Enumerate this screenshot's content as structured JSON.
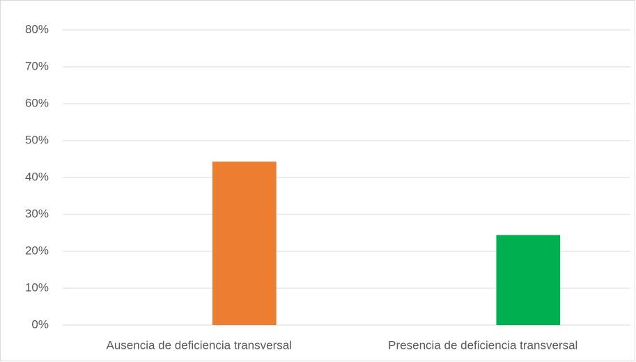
{
  "chart_data": {
    "type": "bar",
    "categories": [
      "Ausencia de deficiencia transversal",
      "Presencia de deficiencia transversal"
    ],
    "values": [
      44.3,
      24.4
    ],
    "colors": [
      "#ed7d31",
      "#00b050"
    ],
    "ylim": [
      0,
      80
    ],
    "yticks": [
      {
        "value": 0,
        "label": "0%"
      },
      {
        "value": 10,
        "label": "10%"
      },
      {
        "value": 20,
        "label": "20%"
      },
      {
        "value": 30,
        "label": "30%"
      },
      {
        "value": 40,
        "label": "40%"
      },
      {
        "value": 50,
        "label": "50%"
      },
      {
        "value": 60,
        "label": "60%"
      },
      {
        "value": 70,
        "label": "70%"
      },
      {
        "value": 80,
        "label": "80%"
      }
    ],
    "grid": true
  }
}
